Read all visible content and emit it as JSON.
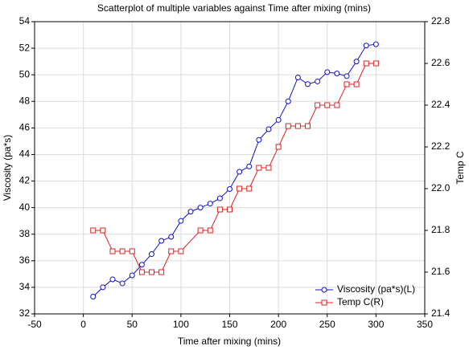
{
  "chart_data": {
    "type": "scatter",
    "title": "Scatterplot of multiple variables against Time after mixing (mins)",
    "x_label": "Time after mixing (mins)",
    "y_label": "Viscosity (pa*s)",
    "y2_label": "Temp C",
    "xlim": [
      -50,
      350
    ],
    "xticks": [
      -50,
      0,
      50,
      100,
      150,
      200,
      250,
      300,
      350
    ],
    "ylim": [
      32,
      54
    ],
    "yticks": [
      32,
      34,
      36,
      38,
      40,
      42,
      44,
      46,
      48,
      50,
      52,
      54
    ],
    "y2lim": [
      21.4,
      22.8
    ],
    "y2ticks": [
      21.4,
      21.6,
      21.8,
      {
        "value": 22,
        "label": "22.0"
      },
      22.2,
      22.4,
      22.6,
      22.8
    ],
    "grid": true,
    "legend": "lower right",
    "series": [
      {
        "name": "Viscosity (pa*s)(L)",
        "color": "#1010c8",
        "marker": "circle",
        "x": [
          10,
          20,
          30,
          40,
          50,
          60,
          70,
          80,
          90,
          100,
          110,
          120,
          130,
          140,
          150,
          160,
          170,
          180,
          190,
          200,
          210,
          220,
          230,
          240,
          250,
          260,
          270,
          280,
          290,
          300
        ],
        "values": [
          33.3,
          34.0,
          34.6,
          34.3,
          34.9,
          35.7,
          36.5,
          37.5,
          37.8,
          39.0,
          39.7,
          40.0,
          40.3,
          40.7,
          41.4,
          42.7,
          43.1,
          45.1,
          45.9,
          46.6,
          48.0,
          49.8,
          49.3,
          49.5,
          50.2,
          50.1,
          49.9,
          51.0,
          52.2,
          52.3
        ]
      },
      {
        "name": "Temp C(R)",
        "color": "#e02020",
        "marker": "square",
        "axis": "y2",
        "x": [
          10,
          20,
          30,
          40,
          50,
          60,
          70,
          80,
          90,
          100,
          120,
          130,
          140,
          150,
          160,
          170,
          180,
          190,
          200,
          210,
          220,
          230,
          240,
          250,
          260,
          270,
          280,
          290,
          300
        ],
        "values": [
          21.8,
          21.8,
          21.7,
          21.7,
          21.7,
          21.6,
          21.6,
          21.6,
          21.7,
          21.7,
          21.8,
          21.8,
          21.9,
          21.9,
          22.0,
          22.0,
          22.1,
          22.1,
          22.2,
          22.3,
          22.3,
          22.3,
          22.4,
          22.4,
          22.4,
          22.5,
          22.5,
          22.6,
          22.6
        ]
      }
    ]
  }
}
